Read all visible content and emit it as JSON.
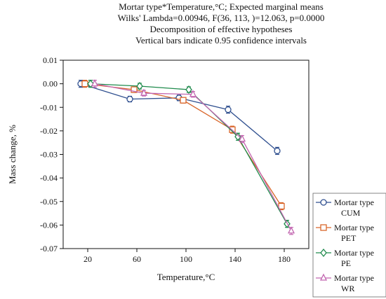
{
  "chart_data": {
    "type": "line",
    "title_lines": [
      "Mortar type*Temperature,°C; Expected marginal means",
      "Wilks' Lambda=0.00946, F(36, 113, )=12.063, p=0.0000",
      "Decomposition of effective hypotheses",
      "Vertical bars indicate 0.95 confidence intervals"
    ],
    "xlabel": "Temperature,°C",
    "ylabel": "Mass change, %",
    "x_ticks": [
      "20",
      "60",
      "100",
      "140",
      "180"
    ],
    "y_ticks": [
      "0.01",
      "0.00",
      "-0.01",
      "-0.02",
      "-0.03",
      "-0.04",
      "-0.05",
      "-0.06",
      "-0.07"
    ],
    "ylim": [
      -0.07,
      0.01
    ],
    "grid": false,
    "legend": "right",
    "series": [
      {
        "name": "Mortar type CUM",
        "legend_lines": [
          "Mortar type",
          "CUM"
        ],
        "color": "#2f4f8f",
        "marker": "circle",
        "x": [
          20,
          60,
          100,
          140,
          180
        ],
        "y": [
          0.0,
          -0.0065,
          -0.006,
          -0.011,
          -0.0285
        ],
        "err": [
          0.0015,
          0.0012,
          0.0012,
          0.0015,
          0.0015
        ]
      },
      {
        "name": "Mortar type PET",
        "legend_lines": [
          "Mortar type",
          "PET"
        ],
        "color": "#d9662b",
        "marker": "square",
        "x": [
          20,
          60,
          100,
          140,
          180
        ],
        "y": [
          0.0,
          -0.0025,
          -0.007,
          -0.0195,
          -0.052
        ],
        "err": [
          0.0015,
          0.0012,
          0.0012,
          0.0015,
          0.0015
        ]
      },
      {
        "name": "Mortar type PE",
        "legend_lines": [
          "Mortar type",
          "PE"
        ],
        "color": "#1f8a4c",
        "marker": "diamond",
        "x": [
          20,
          60,
          100,
          140,
          180
        ],
        "y": [
          0.0,
          -0.001,
          -0.0025,
          -0.0225,
          -0.0595
        ],
        "err": [
          0.0015,
          0.0012,
          0.0012,
          0.0015,
          0.0015
        ]
      },
      {
        "name": "Mortar type WR",
        "legend_lines": [
          "Mortar type",
          "WR"
        ],
        "color": "#c266b0",
        "marker": "triangle",
        "x": [
          20,
          60,
          100,
          140,
          180
        ],
        "y": [
          0.0,
          -0.004,
          -0.0045,
          -0.0235,
          -0.0625
        ],
        "err": [
          0.0015,
          0.0012,
          0.0012,
          0.0015,
          0.0015
        ]
      }
    ]
  }
}
